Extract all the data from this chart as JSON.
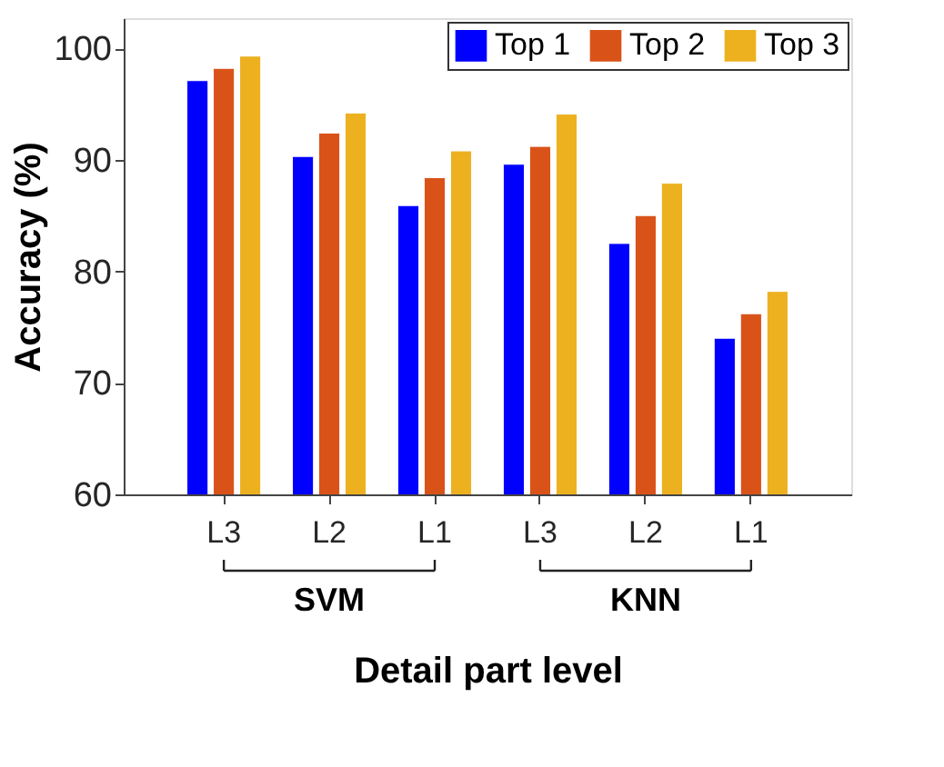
{
  "chart_data": {
    "type": "bar",
    "xlabel": "Detail part level",
    "ylabel": "Accuracy (%)",
    "categories": [
      "L3",
      "L2",
      "L1",
      "L3",
      "L2",
      "L1"
    ],
    "series": [
      {
        "name": "Top 1",
        "color": "#0000ff",
        "values": [
          97.1,
          90.3,
          85.9,
          89.6,
          82.5,
          74.0
        ]
      },
      {
        "name": "Top 2",
        "color": "#d95319",
        "values": [
          98.2,
          92.4,
          88.4,
          91.2,
          85.0,
          76.2
        ]
      },
      {
        "name": "Top 3",
        "color": "#edb120",
        "values": [
          99.3,
          94.2,
          90.8,
          94.1,
          87.9,
          78.2
        ]
      }
    ],
    "ylim": [
      60,
      102.7
    ],
    "yticks": [
      60,
      70,
      80,
      90,
      100
    ],
    "grid": false,
    "legend": "top right",
    "annotations": [
      "SVM",
      "KNN"
    ]
  }
}
